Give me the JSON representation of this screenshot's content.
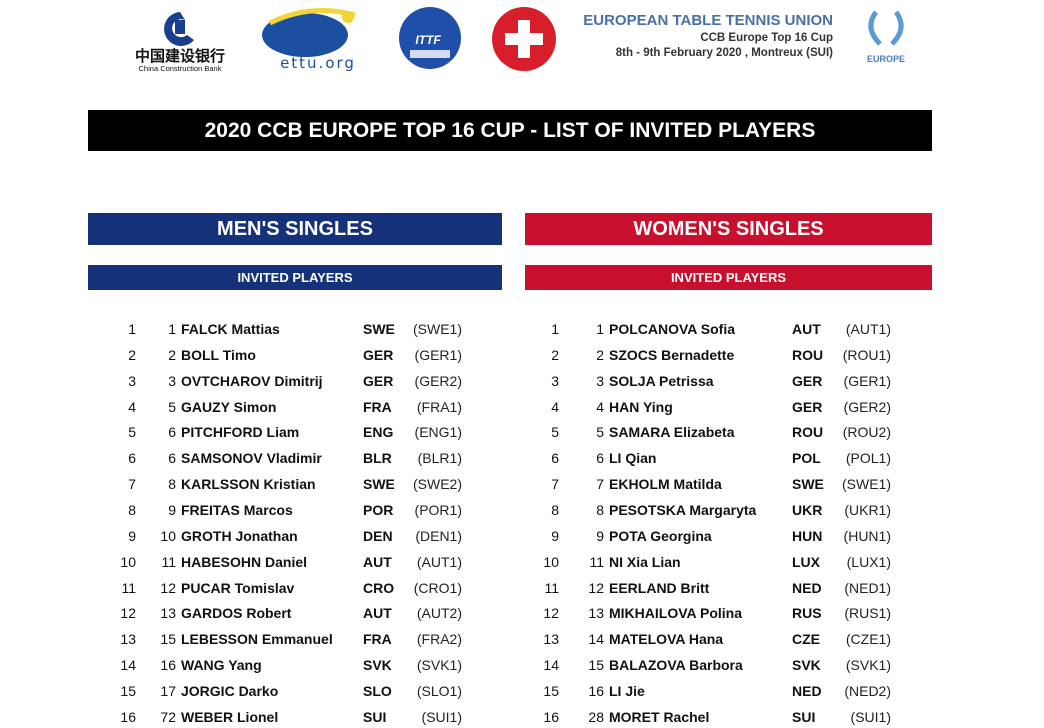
{
  "header": {
    "logos": {
      "ccb": "中国建设银行 China Construction Bank",
      "ettu": "ettu.org",
      "ittf": "ITTF EUROPE",
      "cup": "EUROPE"
    },
    "org": "EUROPEAN TABLE TENNIS UNION",
    "event": "CCB Europe Top 16 Cup",
    "dates": "8th - 9th February 2020 , Montreux (SUI)"
  },
  "title": "2020 CCB EUROPE TOP 16 CUP - LIST OF INVITED PLAYERS",
  "colors": {
    "men": "#14317a",
    "women": "#c8102e",
    "title_bar": "#000000"
  },
  "men": {
    "heading": "MEN'S SINGLES",
    "subheading": "INVITED PLAYERS",
    "players": [
      {
        "seq": "1",
        "rank": "1",
        "name": "FALCK Mattias",
        "country": "SWE",
        "code": "(SWE1)"
      },
      {
        "seq": "2",
        "rank": "2",
        "name": "BOLL Timo",
        "country": "GER",
        "code": "(GER1)"
      },
      {
        "seq": "3",
        "rank": "3",
        "name": "OVTCHAROV Dimitrij",
        "country": "GER",
        "code": "(GER2)"
      },
      {
        "seq": "4",
        "rank": "5",
        "name": "GAUZY Simon",
        "country": "FRA",
        "code": "(FRA1)"
      },
      {
        "seq": "5",
        "rank": "6",
        "name": "PITCHFORD Liam",
        "country": "ENG",
        "code": "(ENG1)"
      },
      {
        "seq": "6",
        "rank": "6",
        "name": "SAMSONOV Vladimir",
        "country": "BLR",
        "code": "(BLR1)"
      },
      {
        "seq": "7",
        "rank": "8",
        "name": "KARLSSON Kristian",
        "country": "SWE",
        "code": "(SWE2)"
      },
      {
        "seq": "8",
        "rank": "9",
        "name": "FREITAS Marcos",
        "country": "POR",
        "code": "(POR1)"
      },
      {
        "seq": "9",
        "rank": "10",
        "name": "GROTH Jonathan",
        "country": "DEN",
        "code": "(DEN1)"
      },
      {
        "seq": "10",
        "rank": "11",
        "name": "HABESOHN Daniel",
        "country": "AUT",
        "code": "(AUT1)"
      },
      {
        "seq": "11",
        "rank": "12",
        "name": "PUCAR Tomislav",
        "country": "CRO",
        "code": "(CRO1)"
      },
      {
        "seq": "12",
        "rank": "13",
        "name": "GARDOS Robert",
        "country": "AUT",
        "code": "(AUT2)"
      },
      {
        "seq": "13",
        "rank": "15",
        "name": "LEBESSON Emmanuel",
        "country": "FRA",
        "code": "(FRA2)"
      },
      {
        "seq": "14",
        "rank": "16",
        "name": "WANG Yang",
        "country": "SVK",
        "code": "(SVK1)"
      },
      {
        "seq": "15",
        "rank": "17",
        "name": "JORGIC Darko",
        "country": "SLO",
        "code": "(SLO1)"
      },
      {
        "seq": "16",
        "rank": "72",
        "name": "WEBER Lionel",
        "country": "SUI",
        "code": "(SUI1)"
      }
    ]
  },
  "women": {
    "heading": "WOMEN'S SINGLES",
    "subheading": "INVITED PLAYERS",
    "players": [
      {
        "seq": "1",
        "rank": "1",
        "name": "POLCANOVA Sofia",
        "country": "AUT",
        "code": "(AUT1)"
      },
      {
        "seq": "2",
        "rank": "2",
        "name": "SZOCS Bernadette",
        "country": "ROU",
        "code": "(ROU1)"
      },
      {
        "seq": "3",
        "rank": "3",
        "name": "SOLJA Petrissa",
        "country": "GER",
        "code": "(GER1)"
      },
      {
        "seq": "4",
        "rank": "4",
        "name": "HAN Ying",
        "country": "GER",
        "code": "(GER2)"
      },
      {
        "seq": "5",
        "rank": "5",
        "name": "SAMARA Elizabeta",
        "country": "ROU",
        "code": "(ROU2)"
      },
      {
        "seq": "6",
        "rank": "6",
        "name": "LI Qian",
        "country": "POL",
        "code": "(POL1)"
      },
      {
        "seq": "7",
        "rank": "7",
        "name": "EKHOLM Matilda",
        "country": "SWE",
        "code": "(SWE1)"
      },
      {
        "seq": "8",
        "rank": "8",
        "name": "PESOTSKA Margaryta",
        "country": "UKR",
        "code": "(UKR1)"
      },
      {
        "seq": "9",
        "rank": "9",
        "name": "POTA Georgina",
        "country": "HUN",
        "code": "(HUN1)"
      },
      {
        "seq": "10",
        "rank": "11",
        "name": "NI Xia Lian",
        "country": "LUX",
        "code": "(LUX1)"
      },
      {
        "seq": "11",
        "rank": "12",
        "name": "EERLAND Britt",
        "country": "NED",
        "code": "(NED1)"
      },
      {
        "seq": "12",
        "rank": "13",
        "name": "MIKHAILOVA Polina",
        "country": "RUS",
        "code": "(RUS1)"
      },
      {
        "seq": "13",
        "rank": "14",
        "name": "MATELOVA Hana",
        "country": "CZE",
        "code": "(CZE1)"
      },
      {
        "seq": "14",
        "rank": "15",
        "name": "BALAZOVA Barbora",
        "country": "SVK",
        "code": "(SVK1)"
      },
      {
        "seq": "15",
        "rank": "16",
        "name": "LI Jie",
        "country": "NED",
        "code": "(NED2)"
      },
      {
        "seq": "16",
        "rank": "28",
        "name": "MORET Rachel",
        "country": "SUI",
        "code": "(SUI1)"
      }
    ]
  }
}
